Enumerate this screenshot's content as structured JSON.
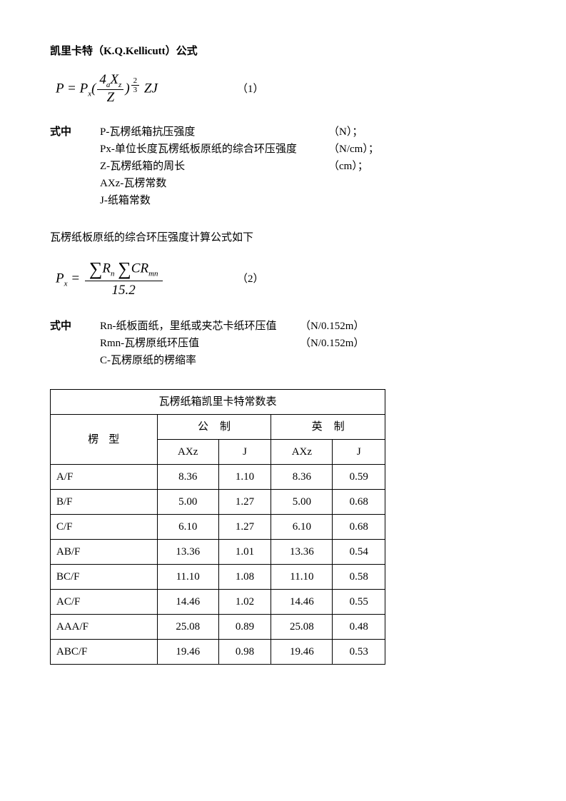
{
  "title": "凯里卡特（K.Q.Kellicutt）公式",
  "formula1_label": "（1）",
  "f1_P": "P",
  "f1_eq": " = ",
  "f1_Px": "P",
  "f1_x": "x",
  "f1_lp": "(",
  "f1_num4": "4",
  "f1_numA": "a",
  "f1_numX": "X",
  "f1_numZsub": "z",
  "f1_den": "Z",
  "f1_rp": ")",
  "f1_pn": "2",
  "f1_pd": "3",
  "f1_Z": " Z",
  "f1_J": "J",
  "defs1_label": "式中",
  "defs1": [
    [
      "P-瓦楞纸箱抗压强度",
      "（N）；"
    ],
    [
      "Px-单位长度瓦楞纸板原纸的综合环压强度",
      "（N/cm）；"
    ],
    [
      "Z-瓦楞纸箱的周长",
      "（cm）；"
    ],
    [
      "AXz-瓦楞常数",
      ""
    ],
    [
      "J-纸箱常数",
      ""
    ]
  ],
  "sub_intro": "瓦楞纸板原纸的综合环压强度计算公式如下",
  "f2_P": "P",
  "f2_x": "x",
  "f2_eq": " = ",
  "f2_Rn": "R",
  "f2_n": "n",
  "f2_C": "C",
  "f2_Rm": "R",
  "f2_mn": "mn",
  "f2_den": "15.2",
  "formula2_label": "（2）",
  "defs2_label": "式中",
  "defs2": [
    [
      "Rn-纸板面纸，里纸或夹芯卡纸环压值",
      "（N/0.152m）"
    ],
    [
      "Rmn-瓦楞原纸环压值",
      "（N/0.152m）"
    ],
    [
      "C-瓦楞原纸的楞缩率",
      ""
    ]
  ],
  "table": {
    "title": "瓦楞纸箱凯里卡特常数表",
    "col_flute": "楞型",
    "col_metric": "公制",
    "col_imp": "英制",
    "col_axz": "AXz",
    "col_j": "J",
    "rows": [
      [
        "A/F",
        "8.36",
        "1.10",
        "8.36",
        "0.59"
      ],
      [
        "B/F",
        "5.00",
        "1.27",
        "5.00",
        "0.68"
      ],
      [
        "C/F",
        "6.10",
        "1.27",
        "6.10",
        "0.68"
      ],
      [
        "AB/F",
        "13.36",
        "1.01",
        "13.36",
        "0.54"
      ],
      [
        "BC/F",
        "11.10",
        "1.08",
        "11.10",
        "0.58"
      ],
      [
        "AC/F",
        "14.46",
        "1.02",
        "14.46",
        "0.55"
      ],
      [
        "AAA/F",
        "25.08",
        "0.89",
        "25.08",
        "0.48"
      ],
      [
        "ABC/F",
        "19.46",
        "0.98",
        "19.46",
        "0.53"
      ]
    ]
  }
}
